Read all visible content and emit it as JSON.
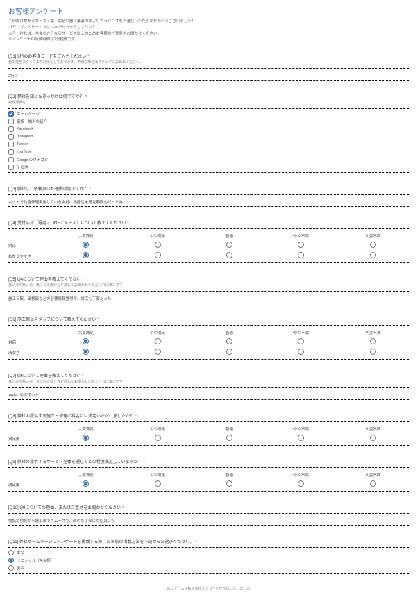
{
  "title": "お客様アンケート",
  "intro_lines": [
    "この度は数あるガラス・鏡・内窓の施工業者の中よりガラパゴスをお選びいただきありがとうございました！",
    "ガラパゴスのサービスはいかがだったでしょうか？",
    "よろしければ、今後のさらなるサービス向上のためお客様のご意見をお聞かせください。",
    "※アンケートの所要時間は2分程度です。"
  ],
  "q1": {
    "label": "[Q1] 9桁のお客様コードをご入力ください",
    "sub": "施工担当スタッフよりお伝えしております。不明な場合はスタッフにお尋ねください。",
    "value": "2桁目"
  },
  "q2": {
    "label": "[Q2] 弊社を知ったきっかけは何ですか？",
    "sub": "複数選択可",
    "options": [
      "ホームページ",
      "家族・知人の紹介",
      "Facebook",
      "Instagram",
      "Twitter",
      "YouTube",
      "Googleのクチコミ",
      "その他"
    ]
  },
  "q3": {
    "label": "[Q3] 弊社にご依頼頂いた理由は何ですか？",
    "value": "ネットで防音修理実施している会社に積極性を感覚期間内だった為"
  },
  "q4": {
    "label": "[Q4] 受付応対（電話／LINE／メール）について教えてください"
  },
  "q5": {
    "label": "[Q5] Q4について理由を教えてください",
    "sub": "良い点や悪い点、気になる部分など詳しくお聞かせいただければ幸いです",
    "value": "施工日取、価格面などの必要情報覚得で、対応も丁寧だった"
  },
  "q6": {
    "label": "[Q6] 施工担当スタッフについて教えてください"
  },
  "q7": {
    "label": "[Q7] Q6について理由を教えてください",
    "sub": "良い点や悪い点、気になる部分など詳しくお聞かせいただければ幸いです",
    "value": "自由に対応頂いた"
  },
  "q8": {
    "label": "[Q8] 弊社の提供する施工・修理の料金には満足いただけましたか？"
  },
  "q9": {
    "label": "[Q9] 弊社の提供するサービス全体を通してどの程度満足していますか？"
  },
  "q10": {
    "label": "[Q10] Q9についての理由、またはご意見をお聞かせください",
    "value": "電話で相談から施工までスムーズで、説明も丁寧に対応頂いた"
  },
  "q11": {
    "label": "[Q11] 弊社ホームページにアンケートを掲載する際、お名前の掲載方法を下記からお選びください。",
    "options": [
      "本名",
      "イニシャル（A.A 様）",
      "匿名"
    ]
  },
  "scale": [
    "大変満足",
    "やや満足",
    "普通",
    "やや不満",
    "大変不満"
  ],
  "rows_feel": [
    "対応",
    "わかりやすさ"
  ],
  "rows_staff": [
    "対応",
    "清潔さ"
  ],
  "row_single": "満足度",
  "footer": "このフォームは株式会社オンコードが作成いたしました。"
}
